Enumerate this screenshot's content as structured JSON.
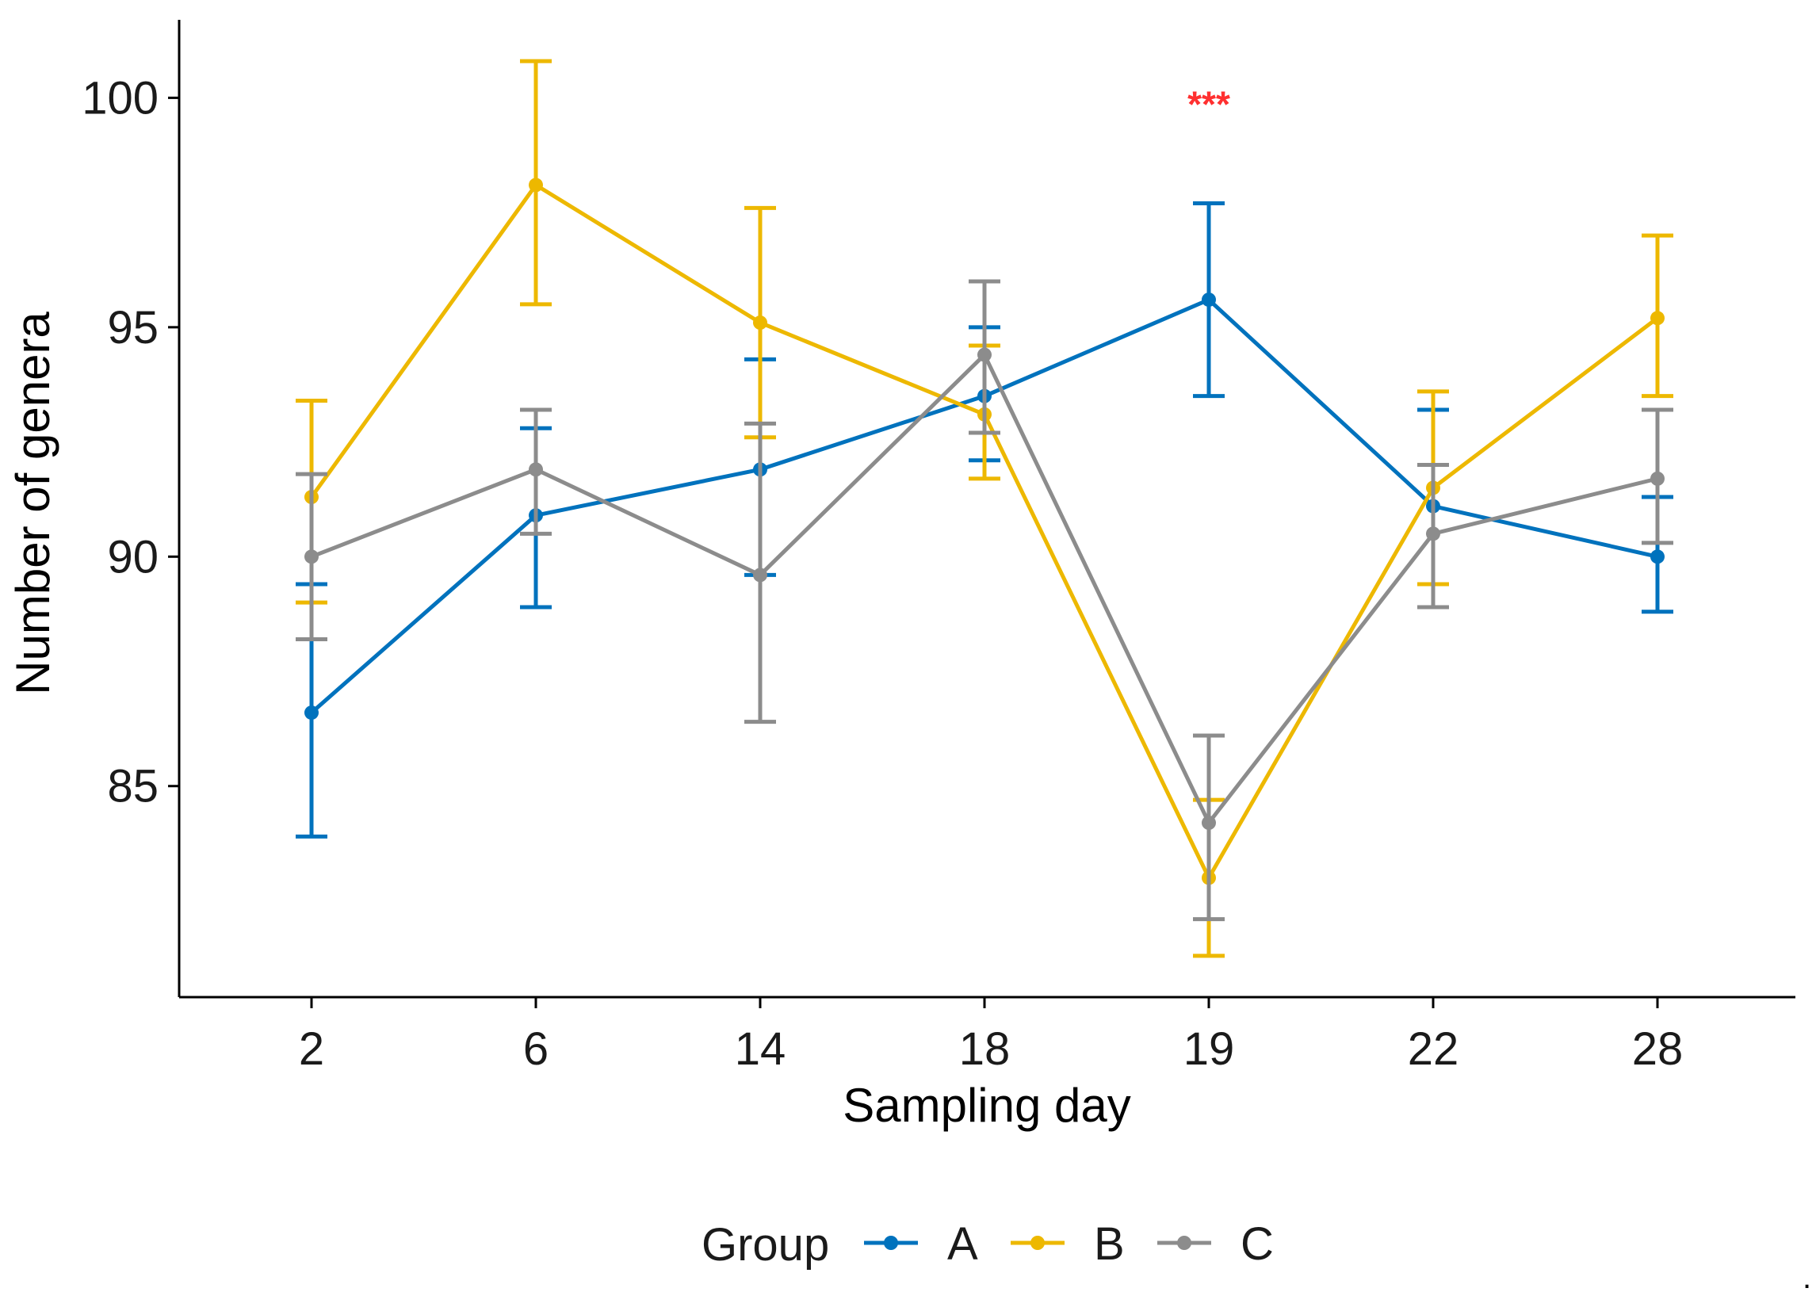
{
  "chart_data": {
    "type": "line",
    "title": "",
    "xlabel": "Sampling day",
    "ylabel": "Number of genera",
    "categories": [
      "2",
      "6",
      "14",
      "18",
      "19",
      "22",
      "28"
    ],
    "yticks": [
      "85",
      "90",
      "95",
      "100"
    ],
    "ylim": [
      80.4,
      101.7
    ],
    "grid": false,
    "legend": {
      "title": "Group",
      "position": "bottom"
    },
    "series": [
      {
        "name": "A",
        "color": "#0072BD",
        "values": [
          86.6,
          90.9,
          91.9,
          93.5,
          95.6,
          91.1,
          90.0
        ],
        "lower": [
          83.9,
          88.9,
          89.6,
          92.1,
          93.5,
          88.9,
          88.8
        ],
        "upper": [
          89.4,
          92.8,
          94.3,
          95.0,
          97.7,
          93.2,
          91.3
        ]
      },
      {
        "name": "B",
        "color": "#EDB800",
        "values": [
          91.3,
          98.1,
          95.1,
          93.1,
          83.0,
          91.5,
          95.2
        ],
        "lower": [
          89.0,
          95.5,
          92.6,
          91.7,
          81.3,
          89.4,
          93.5
        ],
        "upper": [
          93.4,
          100.8,
          97.6,
          94.6,
          84.7,
          93.6,
          97.0
        ]
      },
      {
        "name": "C",
        "color": "#8C8C8C",
        "values": [
          90.0,
          91.9,
          89.6,
          94.4,
          84.2,
          90.5,
          91.7
        ],
        "lower": [
          88.2,
          90.5,
          86.4,
          92.7,
          82.1,
          88.9,
          90.3
        ],
        "upper": [
          91.8,
          93.2,
          92.9,
          96.0,
          86.1,
          92.0,
          93.2
        ]
      }
    ],
    "annotations": [
      {
        "text": "***",
        "category": "19",
        "y": 100.1,
        "color": "#FF3030"
      }
    ]
  }
}
